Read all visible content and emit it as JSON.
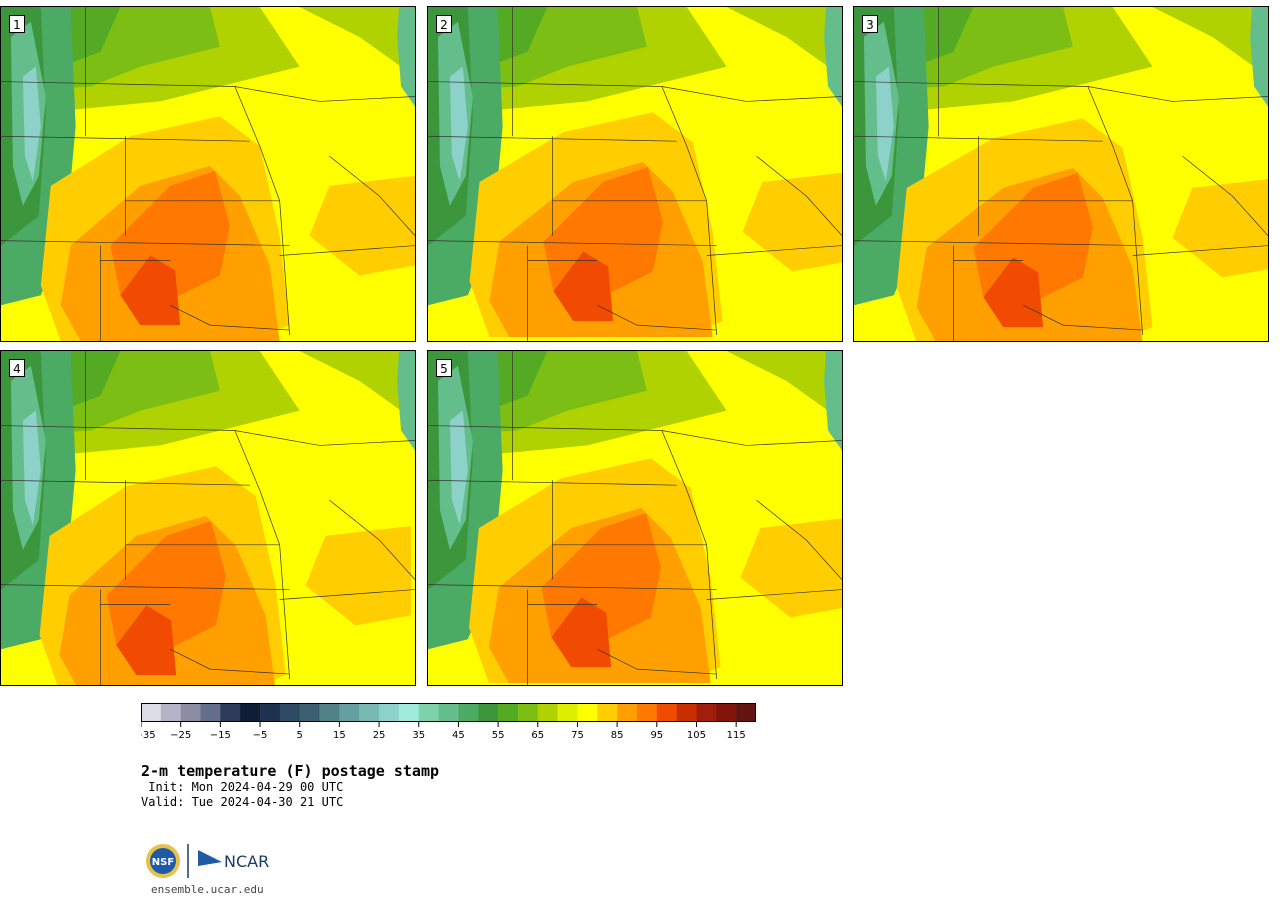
{
  "panels": [
    {
      "label": "1",
      "variant": 0
    },
    {
      "label": "2",
      "variant": 1
    },
    {
      "label": "3",
      "variant": 2
    },
    {
      "label": "4",
      "variant": 3
    },
    {
      "label": "5",
      "variant": 4
    }
  ],
  "colorbar": {
    "colors": [
      "#dcdce6",
      "#b4b4c8",
      "#8c8ca5",
      "#646e8c",
      "#2d3c5a",
      "#0f1e37",
      "#1e3250",
      "#2d4b64",
      "#3c5f73",
      "#508287",
      "#64a0a0",
      "#78b9b4",
      "#8cd2c8",
      "#a0ebdc",
      "#7dd2aa",
      "#64be8c",
      "#4baa64",
      "#3c963c",
      "#55aa23",
      "#7dbe14",
      "#afd200",
      "#dcf000",
      "#ffff00",
      "#ffcd00",
      "#ffa000",
      "#ff7800",
      "#f04b00",
      "#c82d00",
      "#a01e0a",
      "#82140a",
      "#641410"
    ],
    "ticks": [
      "−35",
      "−25",
      "−15",
      "−5",
      "5",
      "15",
      "25",
      "35",
      "45",
      "55",
      "65",
      "75",
      "85",
      "95",
      "105",
      "115"
    ]
  },
  "title": "2-m temperature (F) postage stamp",
  "init": " Init: Mon 2024-04-29 00 UTC",
  "valid": "Valid: Tue 2024-04-30 21 UTC",
  "logos": {
    "nsf": "NSF",
    "ncar": "NCAR"
  },
  "site": "ensemble.ucar.edu"
}
